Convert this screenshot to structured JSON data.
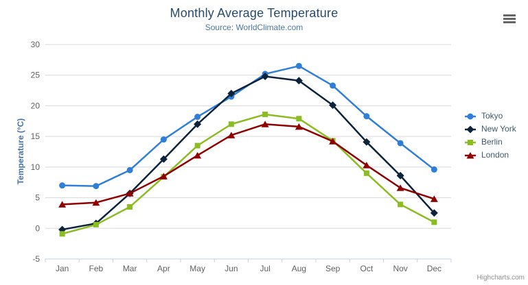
{
  "chart": {
    "credits": "Highcharts.com",
    "context_menu_tooltip": "Chart context menu"
  },
  "chart_data": {
    "type": "line",
    "title": "Monthly Average Temperature",
    "subtitle": "Source: WorldClimate.com",
    "xlabel": "",
    "ylabel": "Temperature (°C)",
    "ylim": [
      -5,
      30
    ],
    "ytick_step": 5,
    "grid": true,
    "legend_position": "right",
    "categories": [
      "Jan",
      "Feb",
      "Mar",
      "Apr",
      "May",
      "Jun",
      "Jul",
      "Aug",
      "Sep",
      "Oct",
      "Nov",
      "Dec"
    ],
    "series": [
      {
        "name": "Tokyo",
        "color": "#2f7ed8",
        "marker": "circle",
        "values": [
          7.0,
          6.9,
          9.5,
          14.5,
          18.2,
          21.5,
          25.2,
          26.5,
          23.3,
          18.3,
          13.9,
          9.6
        ]
      },
      {
        "name": "New York",
        "color": "#0d233a",
        "marker": "diamond",
        "values": [
          -0.2,
          0.8,
          5.7,
          11.3,
          17.0,
          22.0,
          24.8,
          24.1,
          20.1,
          14.1,
          8.6,
          2.5
        ]
      },
      {
        "name": "Berlin",
        "color": "#8bbc21",
        "marker": "square",
        "values": [
          -0.9,
          0.6,
          3.5,
          8.4,
          13.5,
          17.0,
          18.6,
          17.9,
          14.3,
          9.0,
          3.9,
          1.0
        ]
      },
      {
        "name": "London",
        "color": "#910000",
        "marker": "triangle",
        "values": [
          3.9,
          4.2,
          5.7,
          8.5,
          11.9,
          15.2,
          17.0,
          16.6,
          14.2,
          10.3,
          6.6,
          4.8
        ]
      }
    ],
    "colors": {
      "grid_line": "#d8d8d8",
      "axis_line": "#c0d0e0",
      "tick_label": "#606060"
    }
  }
}
